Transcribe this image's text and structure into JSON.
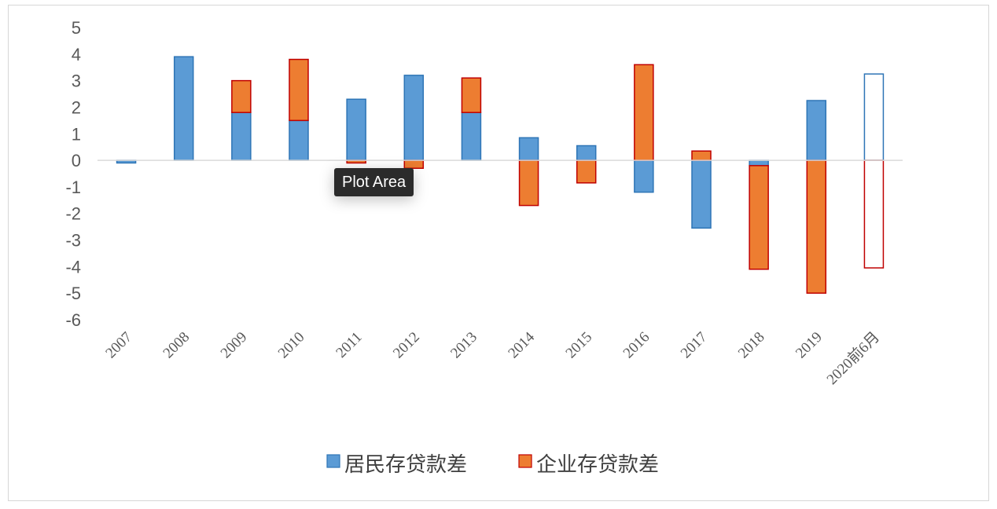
{
  "chart_data": {
    "type": "bar",
    "stacked": true,
    "categories": [
      "2007",
      "2008",
      "2009",
      "2010",
      "2011",
      "2012",
      "2013",
      "2014",
      "2015",
      "2016",
      "2017",
      "2018",
      "2019",
      "2020前6月"
    ],
    "series": [
      {
        "name": "居民存贷款差",
        "color": "#5b9bd5",
        "edge": "#2e75b6",
        "values": [
          -0.1,
          3.9,
          1.8,
          1.5,
          2.3,
          3.2,
          1.8,
          0.85,
          0.55,
          -1.2,
          -2.55,
          -0.2,
          2.25,
          3.25
        ]
      },
      {
        "name": "企业存贷款差",
        "color": "#ed7d31",
        "edge": "#c00000",
        "values": [
          0,
          0,
          1.2,
          2.3,
          -0.1,
          -0.3,
          1.3,
          -1.7,
          -0.85,
          3.6,
          0.35,
          -3.9,
          -5.0,
          -4.05
        ]
      }
    ],
    "hollow_last_category": true,
    "ylim": [
      -6,
      5
    ],
    "yticks": [
      "5",
      "4",
      "3",
      "2",
      "1",
      "0",
      "-1",
      "-2",
      "-3",
      "-4",
      "-5",
      "-6"
    ],
    "grid": false,
    "legend_position": "bottom"
  },
  "tooltip": {
    "text": "Plot Area"
  }
}
